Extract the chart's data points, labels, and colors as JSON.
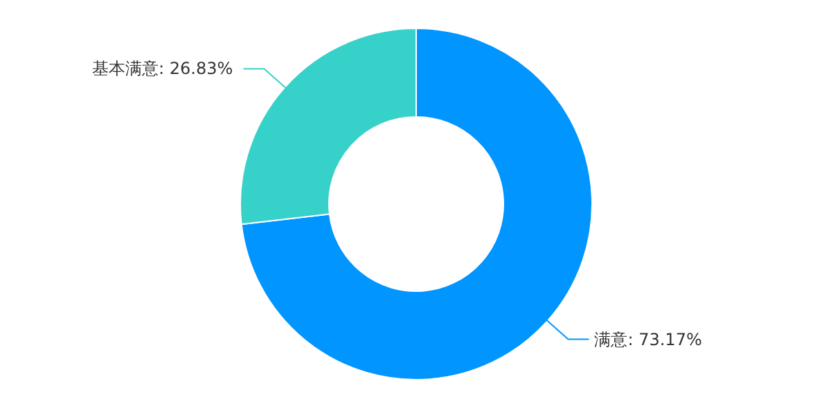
{
  "chart_data": {
    "type": "donut",
    "categories": [
      "满意",
      "基本满意"
    ],
    "values": [
      73.17,
      26.83
    ],
    "colors": [
      "#0095ff",
      "#36d1c9"
    ],
    "value_labels": [
      ": 73.17%",
      ": 26.83%"
    ],
    "legend": false
  }
}
